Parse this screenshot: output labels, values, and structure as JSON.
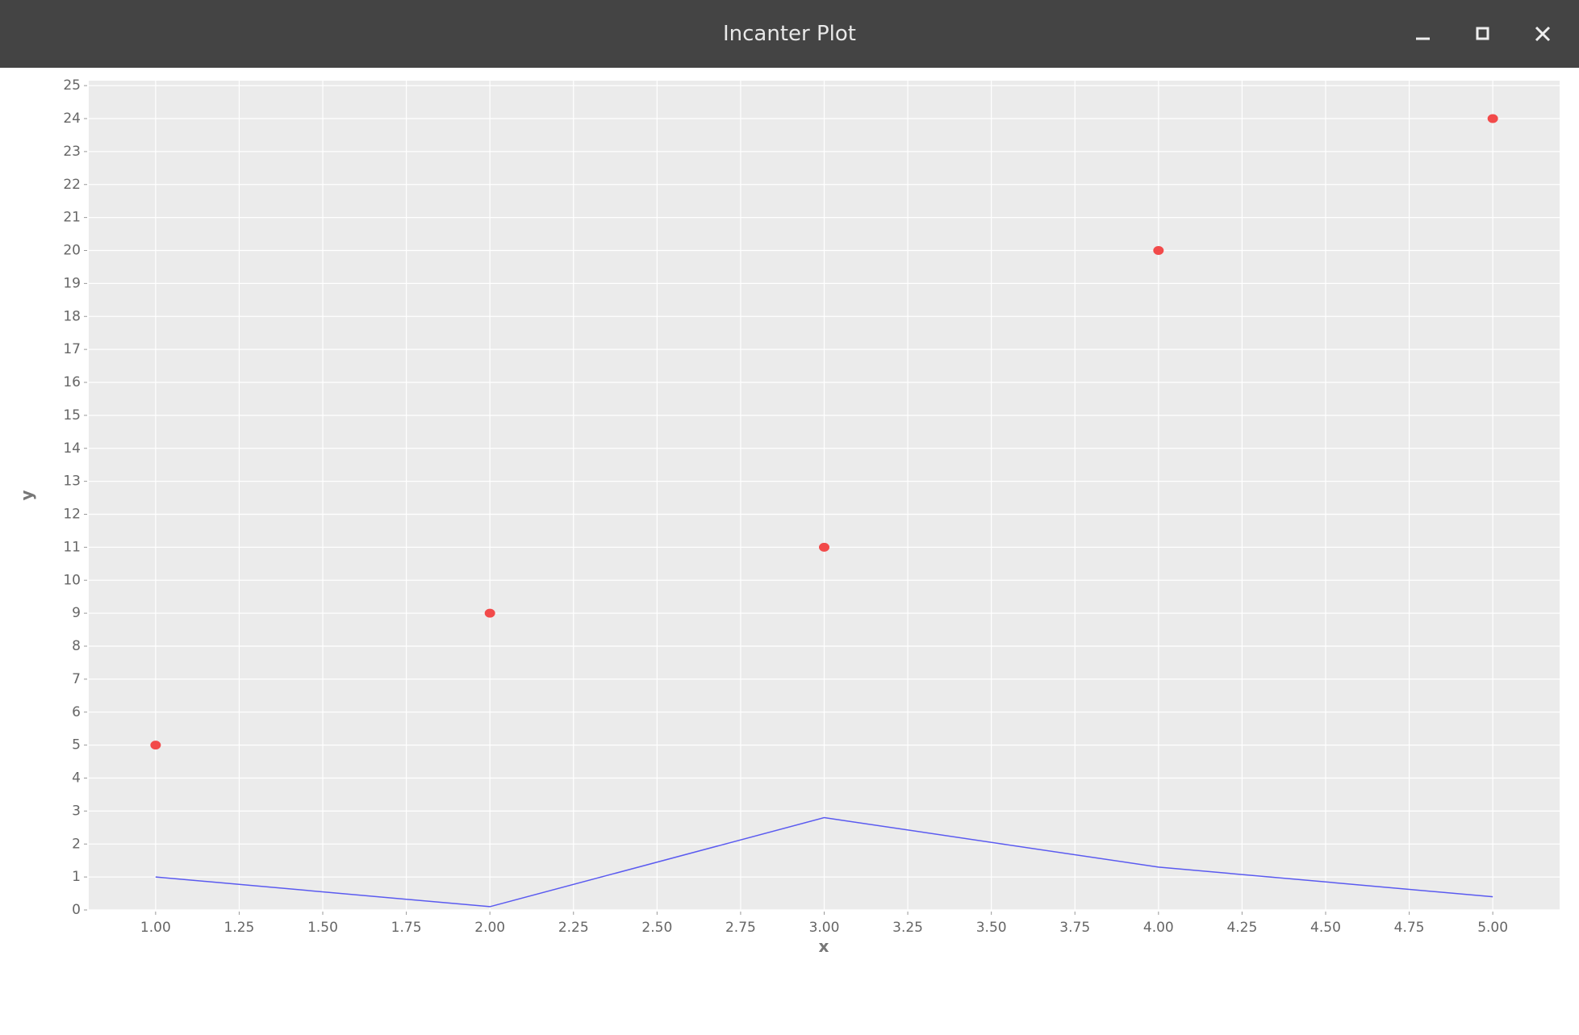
{
  "window": {
    "title": "Incanter Plot"
  },
  "chart_data": {
    "type": "scatter",
    "xlabel": "x",
    "ylabel": "y",
    "x": [
      1,
      2,
      3,
      4,
      5
    ],
    "series": [
      {
        "type": "scatter",
        "color": "#f24a4a",
        "values": [
          5,
          9,
          11,
          20,
          24
        ]
      },
      {
        "type": "line",
        "color": "#5a5af0",
        "values": [
          1,
          0.1,
          2.8,
          1.3,
          0.4
        ]
      }
    ],
    "xlim": [
      0.8,
      5.2
    ],
    "ylim": [
      0,
      25.15
    ],
    "xticks": [
      {
        "value": 1,
        "label": "1.00"
      },
      {
        "value": 1.25,
        "label": "1.25"
      },
      {
        "value": 1.5,
        "label": "1.50"
      },
      {
        "value": 1.75,
        "label": "1.75"
      },
      {
        "value": 2,
        "label": "2.00"
      },
      {
        "value": 2.25,
        "label": "2.25"
      },
      {
        "value": 2.5,
        "label": "2.50"
      },
      {
        "value": 2.75,
        "label": "2.75"
      },
      {
        "value": 3,
        "label": "3.00"
      },
      {
        "value": 3.25,
        "label": "3.25"
      },
      {
        "value": 3.5,
        "label": "3.50"
      },
      {
        "value": 3.75,
        "label": "3.75"
      },
      {
        "value": 4,
        "label": "4.00"
      },
      {
        "value": 4.25,
        "label": "4.25"
      },
      {
        "value": 4.5,
        "label": "4.50"
      },
      {
        "value": 4.75,
        "label": "4.75"
      },
      {
        "value": 5,
        "label": "5.00"
      }
    ],
    "yticks": [
      0,
      1,
      2,
      3,
      4,
      5,
      6,
      7,
      8,
      9,
      10,
      11,
      12,
      13,
      14,
      15,
      16,
      17,
      18,
      19,
      20,
      21,
      22,
      23,
      24,
      25
    ],
    "grid": true
  }
}
